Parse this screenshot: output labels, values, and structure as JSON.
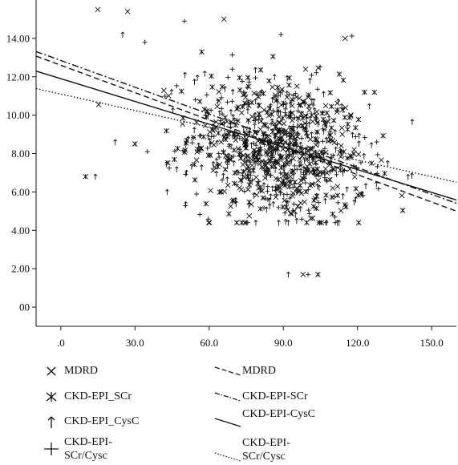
{
  "chart_data": {
    "type": "scatter",
    "title": "",
    "xlabel": "",
    "ylabel": "",
    "xlim": [
      -10,
      160
    ],
    "ylim": [
      -1,
      16
    ],
    "x_ticks": [
      0,
      30,
      60,
      90,
      120,
      150
    ],
    "x_tick_labels": [
      ".0",
      "30.0",
      "60.0",
      "90.0",
      "120.0",
      "150.0"
    ],
    "y_ticks": [
      0,
      2,
      4,
      6,
      8,
      10,
      12,
      14
    ],
    "y_tick_labels": [
      "00",
      "2.00",
      "4.00",
      "6.00",
      "8.00",
      "10.00",
      "12.00",
      "14.00"
    ],
    "cluster": {
      "x_mean": 88,
      "x_sd": 18,
      "y_mean": 8.2,
      "y_sd": 1.9,
      "n_per_series": 240
    },
    "series": [
      {
        "name": "MDRD",
        "marker": "x",
        "fit": {
          "intercept": 12.6,
          "slope": -0.0475,
          "style": "dash"
        },
        "outliers": [
          [
            27,
            15.4
          ],
          [
            15,
            15.5
          ],
          [
            66,
            15.0
          ],
          [
            98,
            1.7
          ],
          [
            115,
            14.0
          ]
        ]
      },
      {
        "name": "CKD-EPI_SCr",
        "marker": "asterisk",
        "fit": {
          "intercept": 12.85,
          "slope": -0.0465,
          "style": "dashdot"
        },
        "outliers": [
          [
            10,
            6.8
          ],
          [
            104,
            1.7
          ],
          [
            30,
            8.5
          ],
          [
            57,
            13.3
          ]
        ]
      },
      {
        "name": "CKD-EPI_CysC",
        "marker": "up-arrow",
        "fit": {
          "intercept": 11.9,
          "slope": -0.0395,
          "style": "solid"
        },
        "outliers": [
          [
            92,
            1.7
          ],
          [
            22,
            8.6
          ],
          [
            43,
            6.0
          ],
          [
            14,
            6.8
          ],
          [
            25,
            14.2
          ]
        ]
      },
      {
        "name": "CKD-EPI-SCr/Cysc",
        "marker": "plus",
        "fit": {
          "intercept": 11.1,
          "slope": -0.0287,
          "style": "dotted"
        },
        "outliers": [
          [
            100,
            1.7
          ],
          [
            35,
            8.1
          ],
          [
            34,
            13.8
          ],
          [
            50,
            14.9
          ],
          [
            89,
            14.2
          ]
        ]
      }
    ],
    "legend_left": {
      "placement": "bottom-left",
      "items": [
        {
          "marker": "x",
          "label": "MDRD"
        },
        {
          "marker": "asterisk",
          "label": "CKD-EPI_SCr"
        },
        {
          "marker": "up-arrow",
          "label": "CKD-EPI_CysC"
        },
        {
          "marker": "plus",
          "label": "CKD-EPI-\nSCr/Cysc"
        }
      ]
    },
    "legend_right": {
      "placement": "bottom-right",
      "items": [
        {
          "line": "dash",
          "label": "MDRD"
        },
        {
          "line": "dashdot",
          "label": "CKD-EPI-SCr"
        },
        {
          "line": "solid",
          "label": "CKD-EPI-CysC"
        },
        {
          "line": "dotted",
          "label": "CKD-EPI-\nSCr/Cysc"
        }
      ]
    },
    "grid": false
  }
}
